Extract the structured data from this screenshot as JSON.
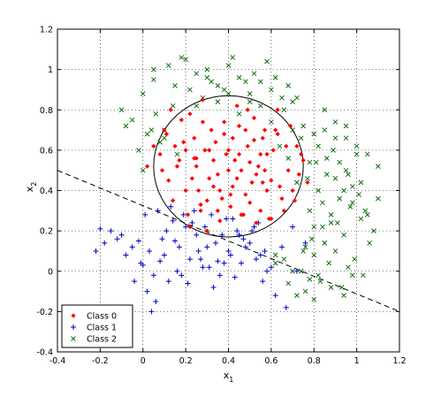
{
  "chart_data": {
    "type": "scatter",
    "title": "",
    "xlabel": "x",
    "xlabel_sub": "1",
    "ylabel": "x",
    "ylabel_sub": "2",
    "xlim": [
      -0.4,
      1.2
    ],
    "ylim": [
      -0.4,
      1.2
    ],
    "xticks": [
      "-0.4",
      "-0.2",
      "0",
      "0.2",
      "0.4",
      "0.6",
      "0.8",
      "1",
      "1.2"
    ],
    "yticks": [
      "-0.4",
      "-0.2",
      "0",
      "0.2",
      "0.4",
      "0.6",
      "0.8",
      "1",
      "1.2"
    ],
    "grid": true,
    "grid_style": "dotted",
    "legend_position": "bottom-left",
    "series": [
      {
        "name": "Class 0",
        "marker": "dot",
        "color": "#ff0000",
        "x": [
          0.1,
          0.15,
          0.22,
          0.28,
          0.33,
          0.4,
          0.45,
          0.52,
          0.58,
          0.63,
          0.68,
          0.72,
          0.12,
          0.2,
          0.25,
          0.3,
          0.35,
          0.42,
          0.48,
          0.55,
          0.6,
          0.65,
          0.7,
          0.75,
          0.08,
          0.18,
          0.24,
          0.32,
          0.38,
          0.44,
          0.5,
          0.57,
          0.62,
          0.67,
          0.73,
          0.14,
          0.21,
          0.27,
          0.36,
          0.41,
          0.47,
          0.53,
          0.59,
          0.66,
          0.16,
          0.23,
          0.29,
          0.34,
          0.39,
          0.46,
          0.51,
          0.56,
          0.61,
          0.69,
          0.11,
          0.19,
          0.26,
          0.31,
          0.37,
          0.43,
          0.49,
          0.54,
          0.64,
          0.71,
          0.13,
          0.17,
          0.28,
          0.33,
          0.4,
          0.45,
          0.52,
          0.58,
          0.63,
          0.22,
          0.3,
          0.36,
          0.42,
          0.48,
          0.55,
          0.6,
          0.25,
          0.35,
          0.44,
          0.5,
          0.57,
          0.2,
          0.38,
          0.46,
          0.53,
          0.09,
          0.74,
          0.77,
          0.05,
          0.02,
          0.24,
          0.31,
          0.41,
          0.49,
          0.56,
          0.27
        ],
        "y": [
          0.7,
          0.62,
          0.78,
          0.85,
          0.55,
          0.6,
          0.72,
          0.65,
          0.58,
          0.8,
          0.5,
          0.62,
          0.45,
          0.4,
          0.52,
          0.35,
          0.48,
          0.42,
          0.38,
          0.3,
          0.45,
          0.36,
          0.4,
          0.55,
          0.58,
          0.75,
          0.66,
          0.7,
          0.68,
          0.82,
          0.54,
          0.5,
          0.7,
          0.62,
          0.48,
          0.35,
          0.28,
          0.3,
          0.25,
          0.32,
          0.28,
          0.24,
          0.26,
          0.3,
          0.52,
          0.46,
          0.6,
          0.64,
          0.58,
          0.5,
          0.44,
          0.66,
          0.6,
          0.72,
          0.68,
          0.64,
          0.4,
          0.46,
          0.36,
          0.55,
          0.62,
          0.52,
          0.42,
          0.35,
          0.8,
          0.55,
          0.74,
          0.42,
          0.5,
          0.58,
          0.76,
          0.4,
          0.68,
          0.22,
          0.2,
          0.4,
          0.66,
          0.7,
          0.58,
          0.26,
          0.56,
          0.3,
          0.46,
          0.34,
          0.7,
          0.6,
          0.74,
          0.28,
          0.48,
          0.5,
          0.58,
          0.44,
          0.62,
          0.52,
          0.56,
          0.6,
          0.38,
          0.8,
          0.44,
          0.33
        ]
      },
      {
        "name": "Class 1",
        "marker": "plus",
        "color": "#0000cc",
        "x": [
          -0.22,
          -0.15,
          -0.1,
          -0.05,
          0.0,
          0.05,
          0.1,
          0.15,
          0.2,
          0.25,
          0.3,
          0.35,
          0.4,
          0.45,
          0.5,
          0.55,
          0.6,
          0.65,
          -0.2,
          -0.12,
          -0.08,
          -0.02,
          0.03,
          0.08,
          0.12,
          0.18,
          0.22,
          0.28,
          0.33,
          0.38,
          0.43,
          0.48,
          0.53,
          0.58,
          0.02,
          0.06,
          0.14,
          0.19,
          0.24,
          0.29,
          0.34,
          0.39,
          0.44,
          0.07,
          0.13,
          0.17,
          0.23,
          0.27,
          0.32,
          0.37,
          0.42,
          0.47,
          0.52,
          0.57,
          0.62,
          0.67,
          0.72,
          0.76,
          -0.18,
          -0.04,
          0.04,
          0.11,
          0.16,
          0.21,
          0.26,
          0.31,
          0.36,
          0.41,
          0.46,
          0.51,
          0.56,
          0.09,
          0.01,
          -0.01,
          0.7,
          0.54
        ],
        "y": [
          0.1,
          0.2,
          0.18,
          0.12,
          0.03,
          -0.02,
          0.08,
          0.15,
          0.22,
          0.18,
          0.12,
          0.05,
          0.1,
          0.18,
          0.14,
          0.08,
          0.02,
          0.12,
          0.21,
          0.16,
          0.08,
          0.15,
          0.1,
          0.05,
          -0.05,
          -0.02,
          0.06,
          0.02,
          -0.08,
          0.04,
          -0.03,
          0.12,
          0.06,
          0.0,
          -0.1,
          -0.15,
          0.25,
          0.28,
          0.3,
          0.22,
          0.14,
          0.26,
          0.2,
          0.3,
          0.32,
          0.12,
          0.24,
          0.06,
          0.28,
          0.18,
          0.26,
          0.16,
          0.22,
          0.1,
          -0.12,
          -0.18,
          0.0,
          0.14,
          0.14,
          -0.05,
          -0.2,
          0.2,
          0.0,
          -0.06,
          0.1,
          0.02,
          -0.02,
          0.08,
          0.04,
          0.2,
          -0.05,
          0.16,
          0.28,
          0.04,
          0.22,
          0.24
        ]
      },
      {
        "name": "Class 2",
        "marker": "x",
        "color": "#006600",
        "x": [
          -0.1,
          -0.05,
          0.0,
          0.05,
          0.1,
          0.15,
          0.2,
          0.25,
          0.3,
          0.35,
          0.4,
          0.45,
          0.5,
          0.55,
          0.6,
          0.65,
          0.7,
          0.75,
          0.8,
          0.85,
          0.9,
          0.95,
          1.0,
          1.05,
          1.1,
          0.82,
          0.86,
          0.92,
          0.98,
          1.04,
          0.78,
          0.84,
          0.88,
          0.94,
          1.02,
          1.08,
          0.76,
          0.8,
          0.9,
          0.96,
          1.06,
          0.74,
          0.83,
          0.87,
          0.93,
          0.99,
          1.03,
          0.79,
          0.85,
          0.91,
          0.97,
          1.01,
          0.77,
          0.81,
          0.89,
          0.95,
          0.05,
          0.12,
          0.18,
          0.22,
          0.28,
          0.32,
          0.38,
          0.42,
          0.48,
          0.52,
          0.58,
          0.62,
          0.68,
          0.72,
          0.0,
          0.08,
          0.14,
          0.02,
          0.06,
          0.16,
          -0.02,
          0.6,
          0.66,
          0.7,
          0.74,
          0.64,
          0.68,
          0.72,
          0.78,
          0.82,
          0.86,
          0.9,
          0.94,
          0.98,
          1.02,
          0.84,
          0.88,
          0.92,
          0.96,
          1.0,
          0.62,
          0.66,
          0.76,
          0.8,
          0.25,
          0.35,
          0.45,
          0.55,
          0.3,
          0.4,
          0.5,
          0.85,
          0.9,
          0.95,
          1.05,
          1.1,
          0.7,
          0.75,
          0.8,
          0.85,
          0.62,
          0.68,
          0.72,
          0.78,
          0.82,
          0.88,
          0.94,
          0.98,
          -0.08,
          0.04,
          0.1
        ],
        "y": [
          0.8,
          0.75,
          0.88,
          0.95,
          0.7,
          0.92,
          1.05,
          0.98,
          1.0,
          0.92,
          1.02,
          0.96,
          0.88,
          0.94,
          0.9,
          0.86,
          0.84,
          0.72,
          0.68,
          0.8,
          0.74,
          0.66,
          0.62,
          0.58,
          0.52,
          0.4,
          0.48,
          0.36,
          0.42,
          0.3,
          0.3,
          0.22,
          0.28,
          0.18,
          0.26,
          0.2,
          0.12,
          0.08,
          0.1,
          0.02,
          0.14,
          0.0,
          -0.05,
          0.04,
          -0.08,
          0.06,
          -0.02,
          0.16,
          0.14,
          0.24,
          0.32,
          0.38,
          0.46,
          0.54,
          0.6,
          0.5,
          1.0,
          1.02,
          1.06,
          0.9,
          0.86,
          0.94,
          0.9,
          1.06,
          0.94,
          0.98,
          1.04,
          0.96,
          0.92,
          0.86,
          0.5,
          0.64,
          0.82,
          0.68,
          0.78,
          0.58,
          0.6,
          0.74,
          0.8,
          0.7,
          0.66,
          0.62,
          0.56,
          0.44,
          0.54,
          0.62,
          0.56,
          0.46,
          0.4,
          0.34,
          0.44,
          0.34,
          0.24,
          0.54,
          0.48,
          0.58,
          0.08,
          0.06,
          -0.1,
          -0.14,
          0.82,
          0.84,
          0.78,
          0.82,
          0.96,
          0.88,
          0.84,
          0.7,
          0.66,
          0.72,
          0.28,
          0.36,
          0.0,
          0.1,
          0.22,
          0.14,
          0.04,
          -0.06,
          -0.12,
          -0.04,
          -0.02,
          -0.08,
          -0.12,
          -0.02,
          0.72,
          0.7,
          0.66
        ]
      }
    ],
    "circle": {
      "cx": 0.4,
      "cy": 0.52,
      "r": 0.35,
      "color": "#000000"
    },
    "boundary_line": {
      "x": [
        -0.4,
        1.2
      ],
      "y": [
        0.5,
        -0.2
      ],
      "style": "dashed",
      "color": "#000000"
    }
  }
}
